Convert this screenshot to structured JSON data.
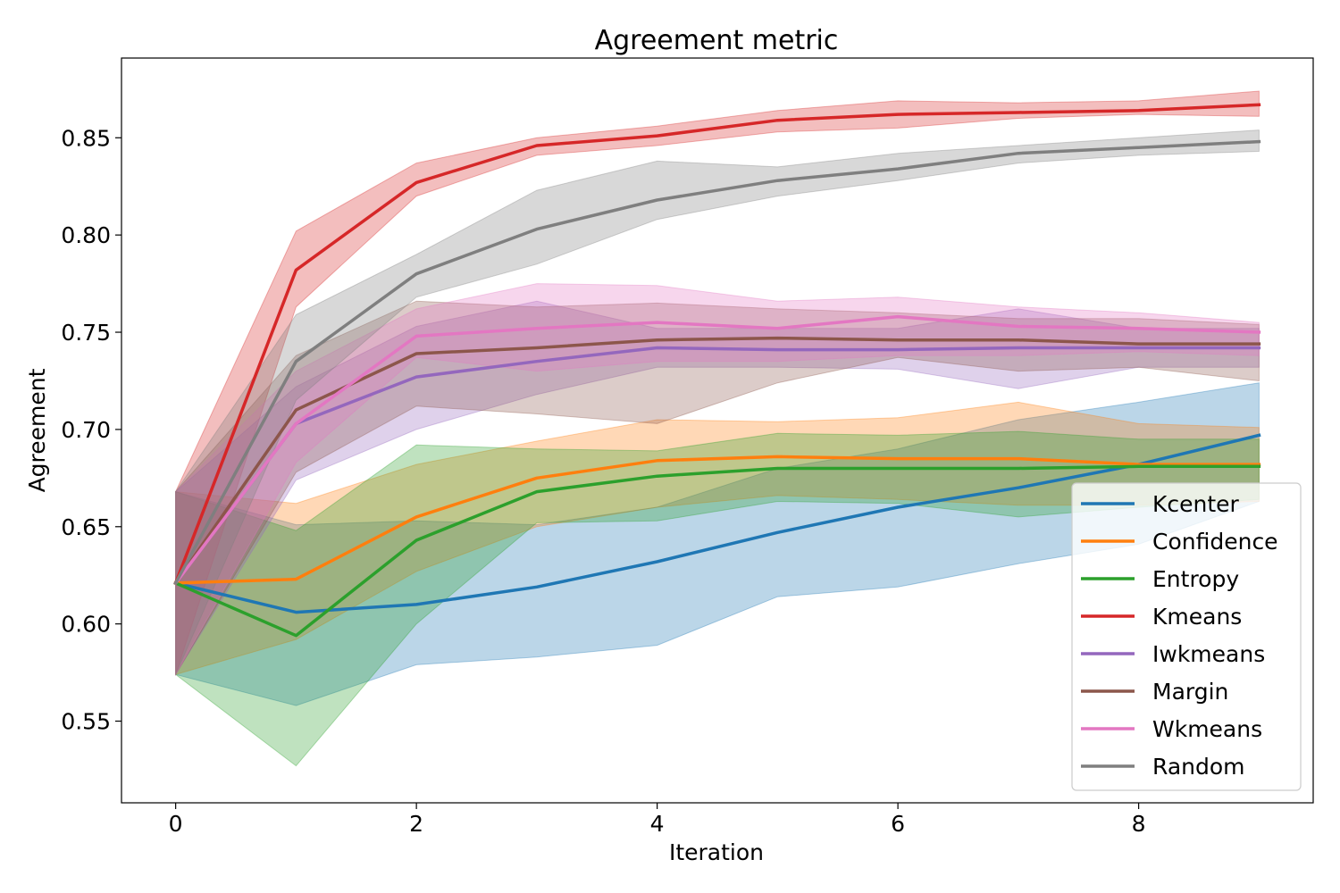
{
  "chart_data": {
    "type": "line",
    "title": "Agreement metric",
    "xlabel": "Iteration",
    "ylabel": "Agreement",
    "xlim": [
      -0.45,
      9.45
    ],
    "ylim": [
      0.508,
      0.891
    ],
    "xticks": [
      0,
      2,
      4,
      6,
      8
    ],
    "yticks": [
      0.55,
      0.6,
      0.65,
      0.7,
      0.75,
      0.8,
      0.85
    ],
    "ytick_labels": [
      "0.55",
      "0.60",
      "0.65",
      "0.70",
      "0.75",
      "0.80",
      "0.85"
    ],
    "grid": false,
    "legend_position": "center-right",
    "x": [
      0,
      1,
      2,
      3,
      4,
      5,
      6,
      7,
      8,
      9
    ],
    "series": [
      {
        "name": "Kcenter",
        "color": "#1f77b4",
        "values": [
          0.621,
          0.606,
          0.61,
          0.619,
          0.632,
          0.647,
          0.66,
          0.67,
          0.682,
          0.697
        ],
        "lower": [
          0.574,
          0.558,
          0.579,
          0.583,
          0.589,
          0.614,
          0.619,
          0.631,
          0.641,
          0.663
        ],
        "upper": [
          0.668,
          0.651,
          0.653,
          0.651,
          0.66,
          0.68,
          0.69,
          0.705,
          0.714,
          0.724
        ]
      },
      {
        "name": "Confidence",
        "color": "#ff7f0e",
        "values": [
          0.621,
          0.623,
          0.655,
          0.675,
          0.684,
          0.686,
          0.685,
          0.685,
          0.682,
          0.682
        ],
        "lower": [
          0.574,
          0.592,
          0.627,
          0.65,
          0.66,
          0.666,
          0.664,
          0.661,
          0.661,
          0.663
        ],
        "upper": [
          0.668,
          0.662,
          0.682,
          0.694,
          0.705,
          0.704,
          0.706,
          0.714,
          0.703,
          0.701
        ]
      },
      {
        "name": "Entropy",
        "color": "#2ca02c",
        "values": [
          0.621,
          0.594,
          0.643,
          0.668,
          0.676,
          0.68,
          0.68,
          0.68,
          0.681,
          0.681
        ],
        "lower": [
          0.574,
          0.527,
          0.6,
          0.652,
          0.653,
          0.663,
          0.662,
          0.655,
          0.66,
          0.664
        ],
        "upper": [
          0.668,
          0.648,
          0.692,
          0.69,
          0.689,
          0.698,
          0.697,
          0.699,
          0.695,
          0.695
        ]
      },
      {
        "name": "Kmeans",
        "color": "#d62728",
        "values": [
          0.621,
          0.782,
          0.827,
          0.846,
          0.851,
          0.859,
          0.862,
          0.863,
          0.864,
          0.867
        ],
        "lower": [
          0.574,
          0.763,
          0.82,
          0.841,
          0.846,
          0.853,
          0.855,
          0.86,
          0.862,
          0.861
        ],
        "upper": [
          0.668,
          0.802,
          0.837,
          0.85,
          0.856,
          0.864,
          0.869,
          0.868,
          0.869,
          0.874
        ]
      },
      {
        "name": "Iwkmeans",
        "color": "#9467bd",
        "values": [
          0.621,
          0.703,
          0.727,
          0.735,
          0.742,
          0.741,
          0.741,
          0.742,
          0.742,
          0.742
        ],
        "lower": [
          0.574,
          0.674,
          0.7,
          0.718,
          0.732,
          0.732,
          0.731,
          0.721,
          0.732,
          0.732
        ],
        "upper": [
          0.668,
          0.722,
          0.753,
          0.766,
          0.752,
          0.752,
          0.752,
          0.762,
          0.752,
          0.752
        ]
      },
      {
        "name": "Margin",
        "color": "#8c564b",
        "values": [
          0.621,
          0.71,
          0.739,
          0.742,
          0.746,
          0.747,
          0.746,
          0.746,
          0.744,
          0.744
        ],
        "lower": [
          0.574,
          0.678,
          0.712,
          0.708,
          0.703,
          0.724,
          0.737,
          0.73,
          0.732,
          0.725
        ],
        "upper": [
          0.668,
          0.738,
          0.766,
          0.763,
          0.765,
          0.762,
          0.76,
          0.757,
          0.757,
          0.754
        ]
      },
      {
        "name": "Wkmeans",
        "color": "#e377c2",
        "values": [
          0.621,
          0.703,
          0.748,
          0.752,
          0.755,
          0.752,
          0.758,
          0.753,
          0.752,
          0.75
        ],
        "lower": [
          0.574,
          0.683,
          0.737,
          0.73,
          0.735,
          0.735,
          0.738,
          0.738,
          0.74,
          0.738
        ],
        "upper": [
          0.668,
          0.73,
          0.762,
          0.775,
          0.774,
          0.766,
          0.768,
          0.763,
          0.76,
          0.755
        ]
      },
      {
        "name": "Random",
        "color": "#7f7f7f",
        "values": [
          0.621,
          0.735,
          0.78,
          0.803,
          0.818,
          0.828,
          0.834,
          0.842,
          0.845,
          0.848
        ],
        "lower": [
          0.574,
          0.715,
          0.768,
          0.785,
          0.808,
          0.82,
          0.828,
          0.837,
          0.841,
          0.843
        ],
        "upper": [
          0.668,
          0.759,
          0.79,
          0.823,
          0.838,
          0.835,
          0.842,
          0.846,
          0.85,
          0.854
        ]
      }
    ]
  }
}
